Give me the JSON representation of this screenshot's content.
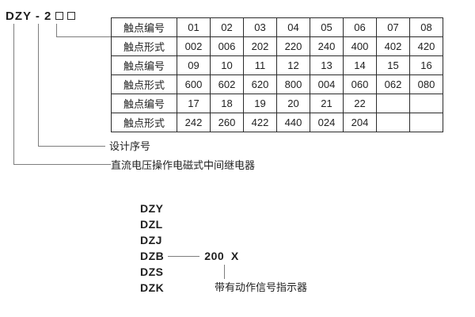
{
  "title": {
    "model": "DZY - 2",
    "placeholder_boxes": 2
  },
  "table": {
    "rows": [
      {
        "label": "触点编号",
        "values": [
          "01",
          "02",
          "03",
          "04",
          "05",
          "06",
          "07",
          "08"
        ]
      },
      {
        "label": "触点形式",
        "values": [
          "002",
          "006",
          "202",
          "220",
          "240",
          "400",
          "402",
          "420"
        ]
      },
      {
        "label": "触点编号",
        "values": [
          "09",
          "10",
          "11",
          "12",
          "13",
          "14",
          "15",
          "16"
        ]
      },
      {
        "label": "触点形式",
        "values": [
          "600",
          "602",
          "620",
          "800",
          "004",
          "060",
          "062",
          "080"
        ]
      },
      {
        "label": "触点编号",
        "values": [
          "17",
          "18",
          "19",
          "20",
          "21",
          "22",
          "",
          ""
        ]
      },
      {
        "label": "触点形式",
        "values": [
          "242",
          "260",
          "422",
          "440",
          "024",
          "204",
          "",
          ""
        ]
      }
    ]
  },
  "annotations": {
    "design_serial": "设计序号",
    "relay_description": "直流电压操作电磁式中间继电器"
  },
  "model_list": {
    "items": [
      {
        "name": "DZY"
      },
      {
        "name": "DZL"
      },
      {
        "name": "DZJ"
      },
      {
        "name": "DZB",
        "suffix": "200  X"
      },
      {
        "name": "DZS"
      },
      {
        "name": "DZK"
      }
    ],
    "indicator_note": "带有动作信号指示器"
  },
  "colors": {
    "text": "#1f1f1f",
    "table_border": "#2b2b2b",
    "leader_line": "#7d7d7d",
    "background": "#ffffff"
  }
}
